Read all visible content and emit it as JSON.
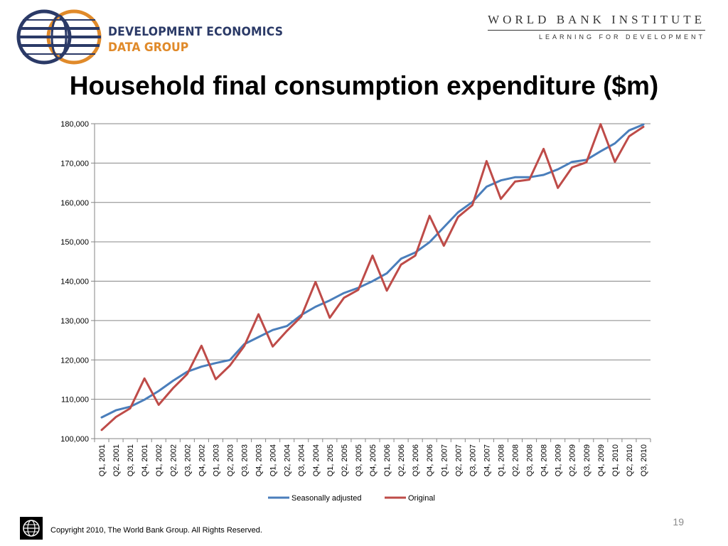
{
  "header": {
    "logo_line1": "DEVELOPMENT ECONOMICS",
    "logo_line2": "DATA GROUP",
    "institute_name": "WORLD BANK INSTITUTE",
    "institute_tagline": "LEARNING FOR DEVELOPMENT"
  },
  "footer": {
    "copyright": "Copyright 2010, The World Bank Group. All Rights Reserved.",
    "page_number": "19"
  },
  "colors": {
    "seasonally_adjusted": "#4a7ebb",
    "original": "#be4b48",
    "gridline": "#868686"
  },
  "chart_data": {
    "type": "line",
    "title": "Household final consumption expenditure ($m)",
    "xlabel": "",
    "ylabel": "",
    "ylim": [
      100000,
      180000
    ],
    "y_ticks": [
      100000,
      110000,
      120000,
      130000,
      140000,
      150000,
      160000,
      170000,
      180000
    ],
    "y_tick_labels": [
      "100,000",
      "110,000",
      "120,000",
      "130,000",
      "140,000",
      "150,000",
      "160,000",
      "170,000",
      "180,000"
    ],
    "grid": "horizontal",
    "legend_position": "bottom",
    "categories": [
      "Q1, 2001",
      "Q2, 2001",
      "Q3, 2001",
      "Q4, 2001",
      "Q1, 2002",
      "Q2, 2002",
      "Q3, 2002",
      "Q4, 2002",
      "Q1, 2003",
      "Q2, 2003",
      "Q3, 2003",
      "Q4, 2003",
      "Q1, 2004",
      "Q2, 2004",
      "Q3, 2004",
      "Q4, 2004",
      "Q1, 2005",
      "Q2, 2005",
      "Q3, 2005",
      "Q4, 2005",
      "Q1, 2006",
      "Q2, 2006",
      "Q3, 2006",
      "Q4, 2006",
      "Q1, 2007",
      "Q2, 2007",
      "Q3, 2007",
      "Q4, 2007",
      "Q1, 2008",
      "Q2, 2008",
      "Q3, 2008",
      "Q4, 2008",
      "Q1, 2009",
      "Q2, 2009",
      "Q3, 2009",
      "Q4, 2009",
      "Q1, 2010",
      "Q2, 2010",
      "Q3, 2010"
    ],
    "series": [
      {
        "name": "Seasonally adjusted",
        "values": [
          105400,
          107200,
          108100,
          109900,
          112100,
          114700,
          117000,
          118300,
          119200,
          120000,
          124000,
          125800,
          127600,
          128600,
          131400,
          133500,
          135100,
          137000,
          138300,
          140000,
          142000,
          145700,
          147300,
          149900,
          153700,
          157500,
          160100,
          164000,
          165600,
          166400,
          166400,
          167000,
          168400,
          170300,
          170800,
          173000,
          175000,
          178300,
          179800
        ]
      },
      {
        "name": "Original",
        "values": [
          102200,
          105500,
          107700,
          115300,
          108600,
          112800,
          116400,
          123600,
          115100,
          118600,
          123500,
          131600,
          123400,
          127400,
          131000,
          139800,
          130700,
          135800,
          137800,
          146500,
          137600,
          144200,
          146500,
          156600,
          149000,
          156300,
          159300,
          170500,
          160900,
          165300,
          165800,
          173600,
          163700,
          168900,
          170200,
          179900,
          170300,
          176800,
          179200
        ]
      }
    ]
  }
}
